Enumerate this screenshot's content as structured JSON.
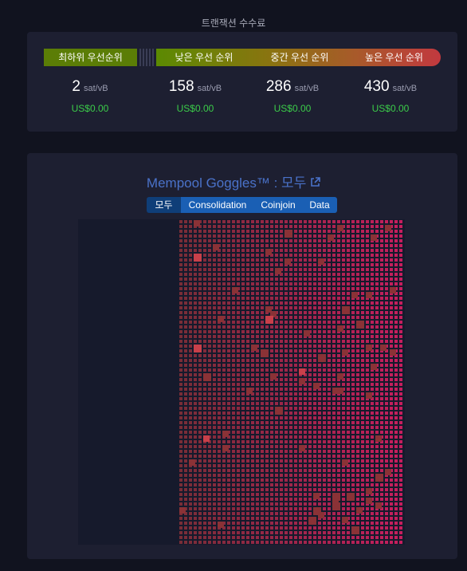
{
  "header": {
    "title": "트랜잭션 수수료"
  },
  "fees": {
    "priorities": [
      "최하위 우선순위",
      "낮은 우선 순위",
      "중간 우선 순위",
      "높은 우선 순위"
    ],
    "items": [
      {
        "value": 2,
        "unit": "sat/vB",
        "usd": "US$0.00"
      },
      {
        "value": 158,
        "unit": "sat/vB",
        "usd": "US$0.00"
      },
      {
        "value": 286,
        "unit": "sat/vB",
        "usd": "US$0.00"
      },
      {
        "value": 430,
        "unit": "sat/vB",
        "usd": "US$0.00"
      }
    ]
  },
  "goggles": {
    "title": "Mempool Goggles™ : 모두",
    "tabs": [
      "모두",
      "Consolidation",
      "Coinjoin",
      "Data"
    ]
  }
}
